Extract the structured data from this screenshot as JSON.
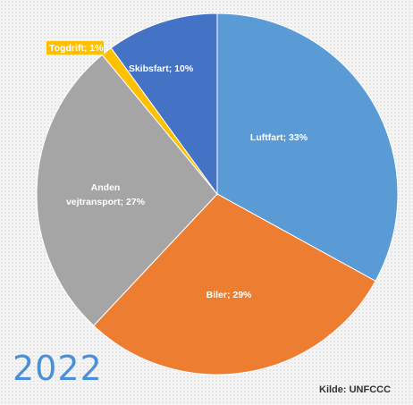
{
  "chart_data": {
    "type": "pie",
    "slices": [
      {
        "label": "Luftfart; 33%",
        "value": 33,
        "color": "#5b9bd5"
      },
      {
        "label": "Biler; 29%",
        "value": 29,
        "color": "#ed7d31"
      },
      {
        "label": "Anden vejtransport; 27%",
        "value": 27,
        "color": "#a5a5a5"
      },
      {
        "label": "Togdrift; 1%",
        "value": 1,
        "color": "#ffc000"
      },
      {
        "label": "Skibsfart; 10%",
        "value": 10,
        "color": "#4472c4"
      }
    ],
    "year": "2022",
    "source": "Kilde: UNFCCC"
  }
}
